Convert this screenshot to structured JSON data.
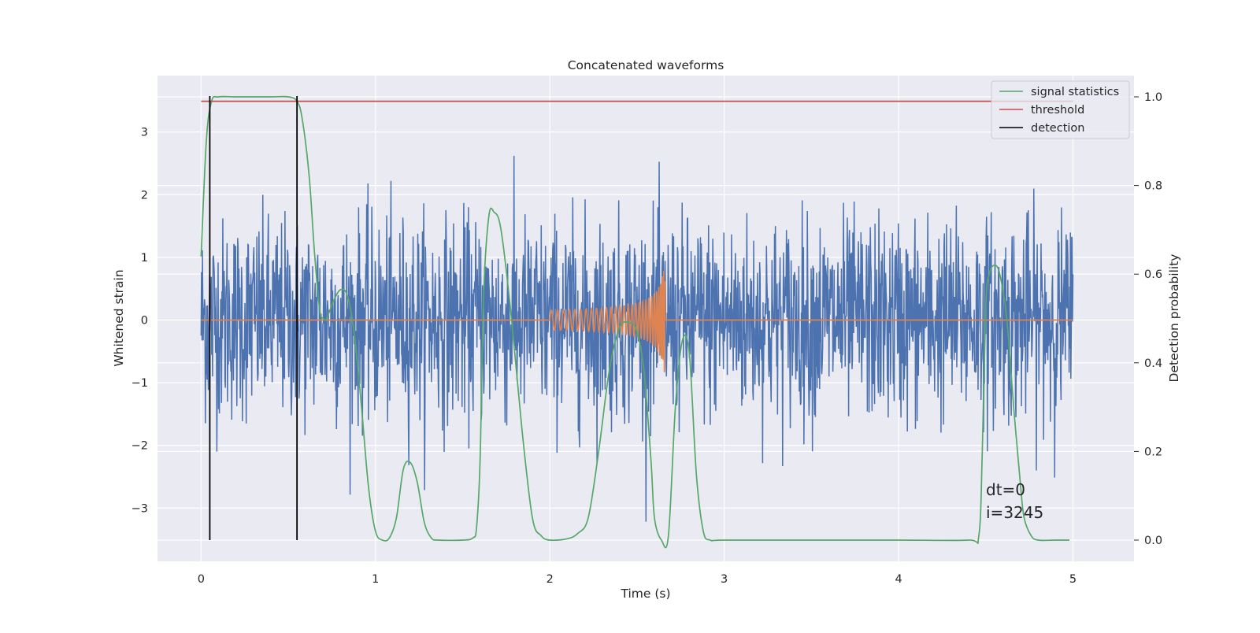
{
  "chart_data": {
    "type": "line",
    "title": "Concatenated waveforms",
    "xlabel": "Time (s)",
    "ylabel": "Whitened strain",
    "y2label": "Detection probability",
    "xlim": [
      -0.25,
      5.35
    ],
    "ylim": [
      -3.85,
      3.9
    ],
    "y2lim": [
      -0.048,
      1.048
    ],
    "xticks": [
      0,
      1,
      2,
      3,
      4,
      5
    ],
    "xtick_labels": [
      "0",
      "1",
      "2",
      "3",
      "4",
      "5"
    ],
    "yticks": [
      -3,
      -2,
      -1,
      0,
      1,
      2,
      3
    ],
    "ytick_labels": [
      "−3",
      "−2",
      "−1",
      "0",
      "1",
      "2",
      "3"
    ],
    "y2ticks": [
      0.0,
      0.2,
      0.4,
      0.6,
      0.8,
      1.0
    ],
    "y2tick_labels": [
      "0.0",
      "0.2",
      "0.4",
      "0.6",
      "0.8",
      "1.0"
    ],
    "grid": true,
    "legend_position": "top-right",
    "series": [
      {
        "name": "",
        "axis": "left",
        "color": "#4c72b0",
        "kind": "noise",
        "x_range": [
          0,
          5
        ],
        "samples": 2048,
        "amplitude_std": 0.8
      },
      {
        "name": "",
        "axis": "left",
        "color": "#dd8452",
        "kind": "chirp",
        "x_range": [
          0,
          5
        ],
        "chirp_start": 2.0,
        "chirp_end": 2.66,
        "peak_amplitude": 1.05,
        "start_amplitude": 0.1
      },
      {
        "name": "signal statistics",
        "axis": "right",
        "color": "#55a868",
        "x": [
          0.0,
          0.03,
          0.06,
          0.1,
          0.2,
          0.3,
          0.4,
          0.5,
          0.55,
          0.58,
          0.62,
          0.65,
          0.68,
          0.7,
          0.72,
          0.76,
          0.8,
          0.84,
          0.88,
          0.92,
          0.96,
          1.0,
          1.04,
          1.08,
          1.12,
          1.16,
          1.2,
          1.24,
          1.28,
          1.32,
          1.36,
          1.5,
          1.56,
          1.58,
          1.6,
          1.62,
          1.65,
          1.68,
          1.72,
          1.78,
          1.84,
          1.9,
          1.95,
          2.0,
          2.1,
          2.16,
          2.22,
          2.28,
          2.34,
          2.4,
          2.46,
          2.5,
          2.54,
          2.58,
          2.6,
          2.64,
          2.68,
          2.72,
          2.76,
          2.8,
          2.84,
          2.88,
          2.92,
          3.0,
          3.5,
          4.0,
          4.4,
          4.46,
          4.48,
          4.5,
          4.52,
          4.55,
          4.58,
          4.62,
          4.66,
          4.7,
          4.72,
          4.76,
          4.8,
          4.9,
          4.98
        ],
        "values": [
          0.64,
          0.9,
          0.99,
          1.0,
          1.0,
          1.0,
          1.0,
          1.0,
          0.99,
          0.95,
          0.82,
          0.65,
          0.52,
          0.5,
          0.5,
          0.54,
          0.565,
          0.55,
          0.46,
          0.3,
          0.12,
          0.02,
          0.0,
          0.005,
          0.05,
          0.16,
          0.175,
          0.13,
          0.04,
          0.005,
          0.0,
          0.0,
          0.005,
          0.03,
          0.18,
          0.55,
          0.73,
          0.74,
          0.7,
          0.5,
          0.25,
          0.05,
          0.01,
          0.0,
          0.003,
          0.015,
          0.05,
          0.2,
          0.38,
          0.48,
          0.49,
          0.47,
          0.38,
          0.18,
          0.05,
          0.0,
          0.01,
          0.3,
          0.45,
          0.42,
          0.15,
          0.02,
          0.0,
          0.0,
          0.0,
          0.0,
          0.0,
          0.01,
          0.2,
          0.53,
          0.6,
          0.62,
          0.6,
          0.5,
          0.3,
          0.12,
          0.05,
          0.01,
          0.0,
          0.0,
          0.0
        ]
      },
      {
        "name": "threshold",
        "axis": "right",
        "color": "#c44e52",
        "x": [
          0,
          5
        ],
        "values": [
          0.99,
          0.99
        ]
      },
      {
        "name": "detection",
        "axis": "right",
        "color": "#000000",
        "kind": "vertical",
        "x_positions": [
          0.05,
          0.55
        ],
        "y_range": [
          0.0,
          1.0
        ]
      }
    ],
    "annotations": [
      "dt=0",
      "i=3245"
    ],
    "background": "#eaeaf2",
    "grid_color": "#ffffff"
  }
}
